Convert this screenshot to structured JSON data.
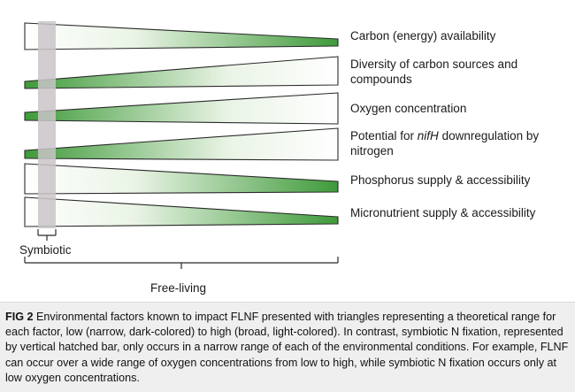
{
  "factors": [
    {
      "label": "Carbon (energy) availability",
      "direction": "decreasing"
    },
    {
      "label_parts": [
        "Diversity of carbon sources and compounds"
      ],
      "direction": "increasing"
    },
    {
      "label": "Oxygen concentration",
      "direction": "increasing"
    },
    {
      "label_pre": "Potential for ",
      "label_italic": "nifH",
      "label_post": " downregulation by nitrogen",
      "direction": "increasing"
    },
    {
      "label": "Phosphorus supply & accessibility",
      "direction": "decreasing"
    },
    {
      "label": "Micronutrient supply & accessibility",
      "direction": "decreasing"
    }
  ],
  "axis": {
    "symbiotic_label": "Symbiotic",
    "free_living_label": "Free-living"
  },
  "colors": {
    "triangle_dark": "#3f9a3a",
    "triangle_light": "#ffffff",
    "outline": "#2a2a2a",
    "symbiotic_bar": "#c9c4c8",
    "caption_bg": "#efefef"
  },
  "caption": {
    "fig_label": "FIG 2",
    "text": " Environmental factors known to impact FLNF presented with triangles representing a theoretical range for each factor, low (narrow, dark-colored) to high (broad, light-colored). In contrast, symbiotic N fixation, represented by vertical hatched bar, only occurs in a narrow range of each of the environmental conditions. For example, FLNF can occur over a wide range of oxygen concentrations from low to high, while symbiotic N fixation occurs only at low oxygen concentrations."
  }
}
